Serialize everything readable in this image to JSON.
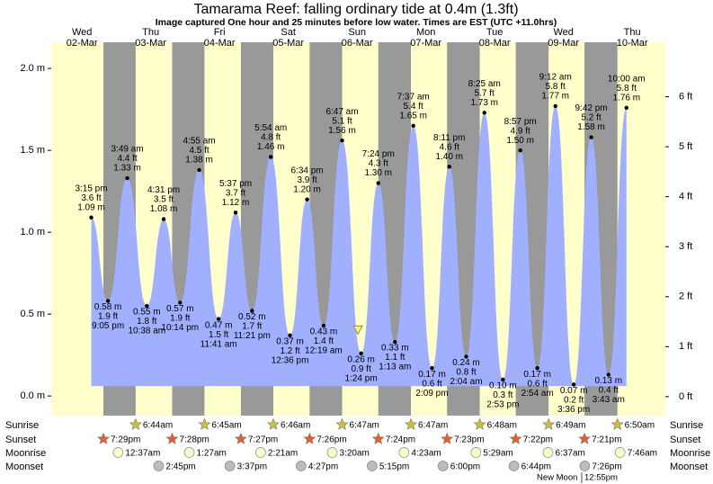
{
  "chart_data": {
    "type": "area",
    "title": "Tamarama Reef: falling  ordinary tide at 0.4m (1.3ft)",
    "subtitle": "Image captured One hour and 25 minutes before low water. Times are EST (UTC +11.0hrs)",
    "days": [
      {
        "name": "Wed",
        "date": "02-Mar",
        "sunrise": null,
        "sunset": "7:29pm",
        "moonrise": null,
        "moonset": null
      },
      {
        "name": "Thu",
        "date": "03-Mar",
        "sunrise": "6:44am",
        "sunset": "7:28pm",
        "moonrise": "12:37am",
        "moonset": "2:45pm"
      },
      {
        "name": "Fri",
        "date": "04-Mar",
        "sunrise": "6:45am",
        "sunset": "7:27pm",
        "moonrise": "1:27am",
        "moonset": "3:37pm"
      },
      {
        "name": "Sat",
        "date": "05-Mar",
        "sunrise": "6:46am",
        "sunset": "7:26pm",
        "moonrise": "2:21am",
        "moonset": "4:27pm"
      },
      {
        "name": "Sun",
        "date": "06-Mar",
        "sunrise": "6:47am",
        "sunset": "7:24pm",
        "moonrise": "3:20am",
        "moonset": "5:15pm"
      },
      {
        "name": "Mon",
        "date": "07-Mar",
        "sunrise": "6:47am",
        "sunset": "7:23pm",
        "moonrise": "4:23am",
        "moonset": "6:00pm"
      },
      {
        "name": "Tue",
        "date": "08-Mar",
        "sunrise": "6:48am",
        "sunset": "7:22pm",
        "moonrise": "5:29am",
        "moonset": "6:44pm"
      },
      {
        "name": "Wed",
        "date": "09-Mar",
        "sunrise": "6:49am",
        "sunset": "7:21pm",
        "moonrise": "6:37am",
        "moonset": "7:26pm"
      },
      {
        "name": "Thu",
        "date": "10-Mar",
        "sunrise": "6:50am",
        "sunset": null,
        "moonrise": "7:46am",
        "moonset": null
      }
    ],
    "row_labels": {
      "sunrise": "Sunrise",
      "sunset": "Sunset",
      "moonrise": "Moonrise",
      "moonset": "Moonset"
    },
    "moon_phase": "New Moon",
    "moon_phase_time": "12:55pm",
    "current_level": 0.4,
    "tides": {
      "color": "#a0b0ff",
      "times": [
        "3:15 pm",
        "9:05 pm",
        "3:49 am",
        "10:38 am",
        "4:31 pm",
        "10:14 pm",
        "4:55 am",
        "11:41 am",
        "5:37 pm",
        "11:21 pm",
        "5:54 am",
        "12:36 pm",
        "6:34 pm",
        "12:19 am",
        "6:47 am",
        "1:24 pm",
        "7:24 pm",
        "1:13 am",
        "7:37 am",
        "2:09 pm",
        "8:11 pm",
        "2:04 am",
        "8:25 am",
        "2:53 pm",
        "8:57 pm",
        "2:54 am",
        "9:12 am",
        "3:36 pm",
        "9:42 pm",
        "3:43 am",
        "10:00 am"
      ],
      "values": [
        1.09,
        0.58,
        1.33,
        0.55,
        1.08,
        0.57,
        1.38,
        0.47,
        1.12,
        0.52,
        1.46,
        0.37,
        1.2,
        0.43,
        1.56,
        0.26,
        1.3,
        0.33,
        1.65,
        0.17,
        1.4,
        0.24,
        1.73,
        0.1,
        1.5,
        0.17,
        1.77,
        0.07,
        1.58,
        0.13,
        1.76
      ],
      "value_labels": [
        "1.09 m",
        "0.58 m",
        "1.33 m",
        "0.55 m",
        "1.08 m",
        "0.57 m",
        "1.38 m",
        "0.47 m",
        "1.12 m",
        "0.52 m",
        "1.46 m",
        "0.37 m",
        "1.20 m",
        "0.43 m",
        "1.56 m",
        "0.26 m",
        "1.30 m",
        "0.33 m",
        "1.65 m",
        "0.17 m",
        "1.40 m",
        "0.24 m",
        "1.73 m",
        "0.10 m",
        "1.50 m",
        "0.17 m",
        "1.77 m",
        "0.07 m",
        "1.58 m",
        "0.13 m",
        "1.76 m"
      ],
      "ft_labels": [
        "3.6 ft",
        "1.9 ft",
        "4.4 ft",
        "1.8 ft",
        "3.5 ft",
        "1.9 ft",
        "4.5 ft",
        "1.5 ft",
        "3.7 ft",
        "1.7 ft",
        "4.8 ft",
        "1.2 ft",
        "3.9 ft",
        "1.4 ft",
        "5.1 ft",
        "0.9 ft",
        "4.3 ft",
        "1.1 ft",
        "5.4 ft",
        "0.6 ft",
        "4.6 ft",
        "0.8 ft",
        "5.7 ft",
        "0.3 ft",
        "4.9 ft",
        "0.6 ft",
        "5.8 ft",
        "0.2 ft",
        "5.2 ft",
        "0.4 ft",
        "5.8 ft"
      ]
    },
    "ylim": [
      -0.12,
      2.16
    ],
    "yticks": [
      {
        "value": 0,
        "label": "0.0 m"
      },
      {
        "value": 0.5,
        "label": "0.5 m"
      },
      {
        "value": 1,
        "label": "1.0 m"
      },
      {
        "value": 1.5,
        "label": "1.5 m"
      },
      {
        "value": 2,
        "label": "2.0 m"
      }
    ],
    "y2lim": [
      -0.38,
      7.09
    ],
    "y2ticks": [
      {
        "value": 0,
        "label": "0 ft"
      },
      {
        "value": 1,
        "label": "1 ft"
      },
      {
        "value": 2,
        "label": "2 ft"
      },
      {
        "value": 3,
        "label": "3 ft"
      },
      {
        "value": 4,
        "label": "4 ft"
      },
      {
        "value": 5,
        "label": "5 ft"
      },
      {
        "value": 6,
        "label": "6 ft"
      }
    ],
    "day_color": "#ffffcc",
    "night_color": "#999999",
    "day_label_color": "#e00000"
  }
}
